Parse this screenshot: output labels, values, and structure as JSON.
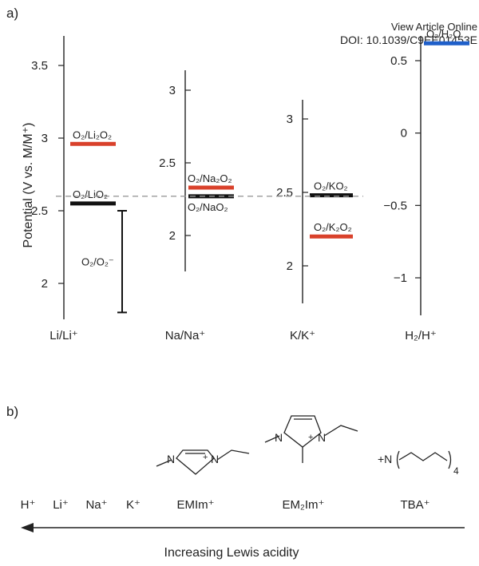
{
  "header": {
    "line1": "View Article Online",
    "line2": "DOI: 10.1039/C9EE01453E"
  },
  "panel_a": {
    "label": "a)",
    "y_axis_label": "Potential (V vs. M/M⁺)",
    "colors": {
      "axis": "#222222",
      "red": "#d9412b",
      "black": "#111111",
      "blue": "#1f5fc9",
      "dashed": "#999999"
    },
    "reference_line": {
      "style": "dashed",
      "potential_vs_Li": 2.6
    },
    "axes": [
      {
        "id": "li",
        "xlabel": "Li/Li⁺",
        "ticks": [
          {
            "v": 2,
            "label": "2"
          },
          {
            "v": 2.5,
            "label": "2.5"
          },
          {
            "v": 3,
            "label": "3"
          },
          {
            "v": 3.5,
            "label": "3.5"
          }
        ],
        "couples": [
          {
            "label": "O₂/Li₂O₂",
            "v": 2.96,
            "color": "red"
          },
          {
            "label": "O₂/LiO₂",
            "v": 2.55,
            "color": "black"
          }
        ],
        "range_bar": {
          "label": "O₂/O₂⁻",
          "from": 1.8,
          "to": 2.5
        }
      },
      {
        "id": "na",
        "xlabel": "Na/Na⁺",
        "ticks": [
          {
            "v": 2,
            "label": "2"
          },
          {
            "v": 2.5,
            "label": "2.5"
          },
          {
            "v": 3,
            "label": "3"
          }
        ],
        "couples": [
          {
            "label": "O₂/Na₂O₂",
            "v": 2.33,
            "color": "red"
          },
          {
            "label": "O₂/NaO₂",
            "v": 2.27,
            "color": "black"
          }
        ]
      },
      {
        "id": "k",
        "xlabel": "K/K⁺",
        "ticks": [
          {
            "v": 2,
            "label": "2"
          },
          {
            "v": 2.5,
            "label": "2.5"
          },
          {
            "v": 3,
            "label": "3"
          }
        ],
        "couples": [
          {
            "label": "O₂/KO₂",
            "v": 2.48,
            "color": "black"
          },
          {
            "label": "O₂/K₂O₂",
            "v": 2.2,
            "color": "red"
          }
        ]
      },
      {
        "id": "h",
        "xlabel": "H₂/H⁺",
        "ticks": [
          {
            "v": -1,
            "label": "−1"
          },
          {
            "v": -0.5,
            "label": "−0.5"
          },
          {
            "v": 0,
            "label": "0"
          },
          {
            "v": 0.5,
            "label": "0.5"
          }
        ],
        "couples": [
          {
            "label": "O₂/H₂O",
            "v": 0.62,
            "color": "blue"
          }
        ]
      }
    ]
  },
  "panel_b": {
    "label": "b)",
    "cations": [
      "H⁺",
      "Li⁺",
      "Na⁺",
      "K⁺",
      "EMIm⁺",
      "EM₂Im⁺",
      "TBA⁺"
    ],
    "arrow_caption": "Increasing Lewis acidity",
    "structures": [
      {
        "name": "EMIm⁺",
        "atom_labels": [
          "N",
          "N",
          "+"
        ]
      },
      {
        "name": "EM₂Im⁺",
        "atom_labels": [
          "N",
          "N",
          "+"
        ]
      },
      {
        "name": "TBA⁺",
        "atom_labels": [
          "+N"
        ],
        "subscript": "4"
      }
    ]
  }
}
